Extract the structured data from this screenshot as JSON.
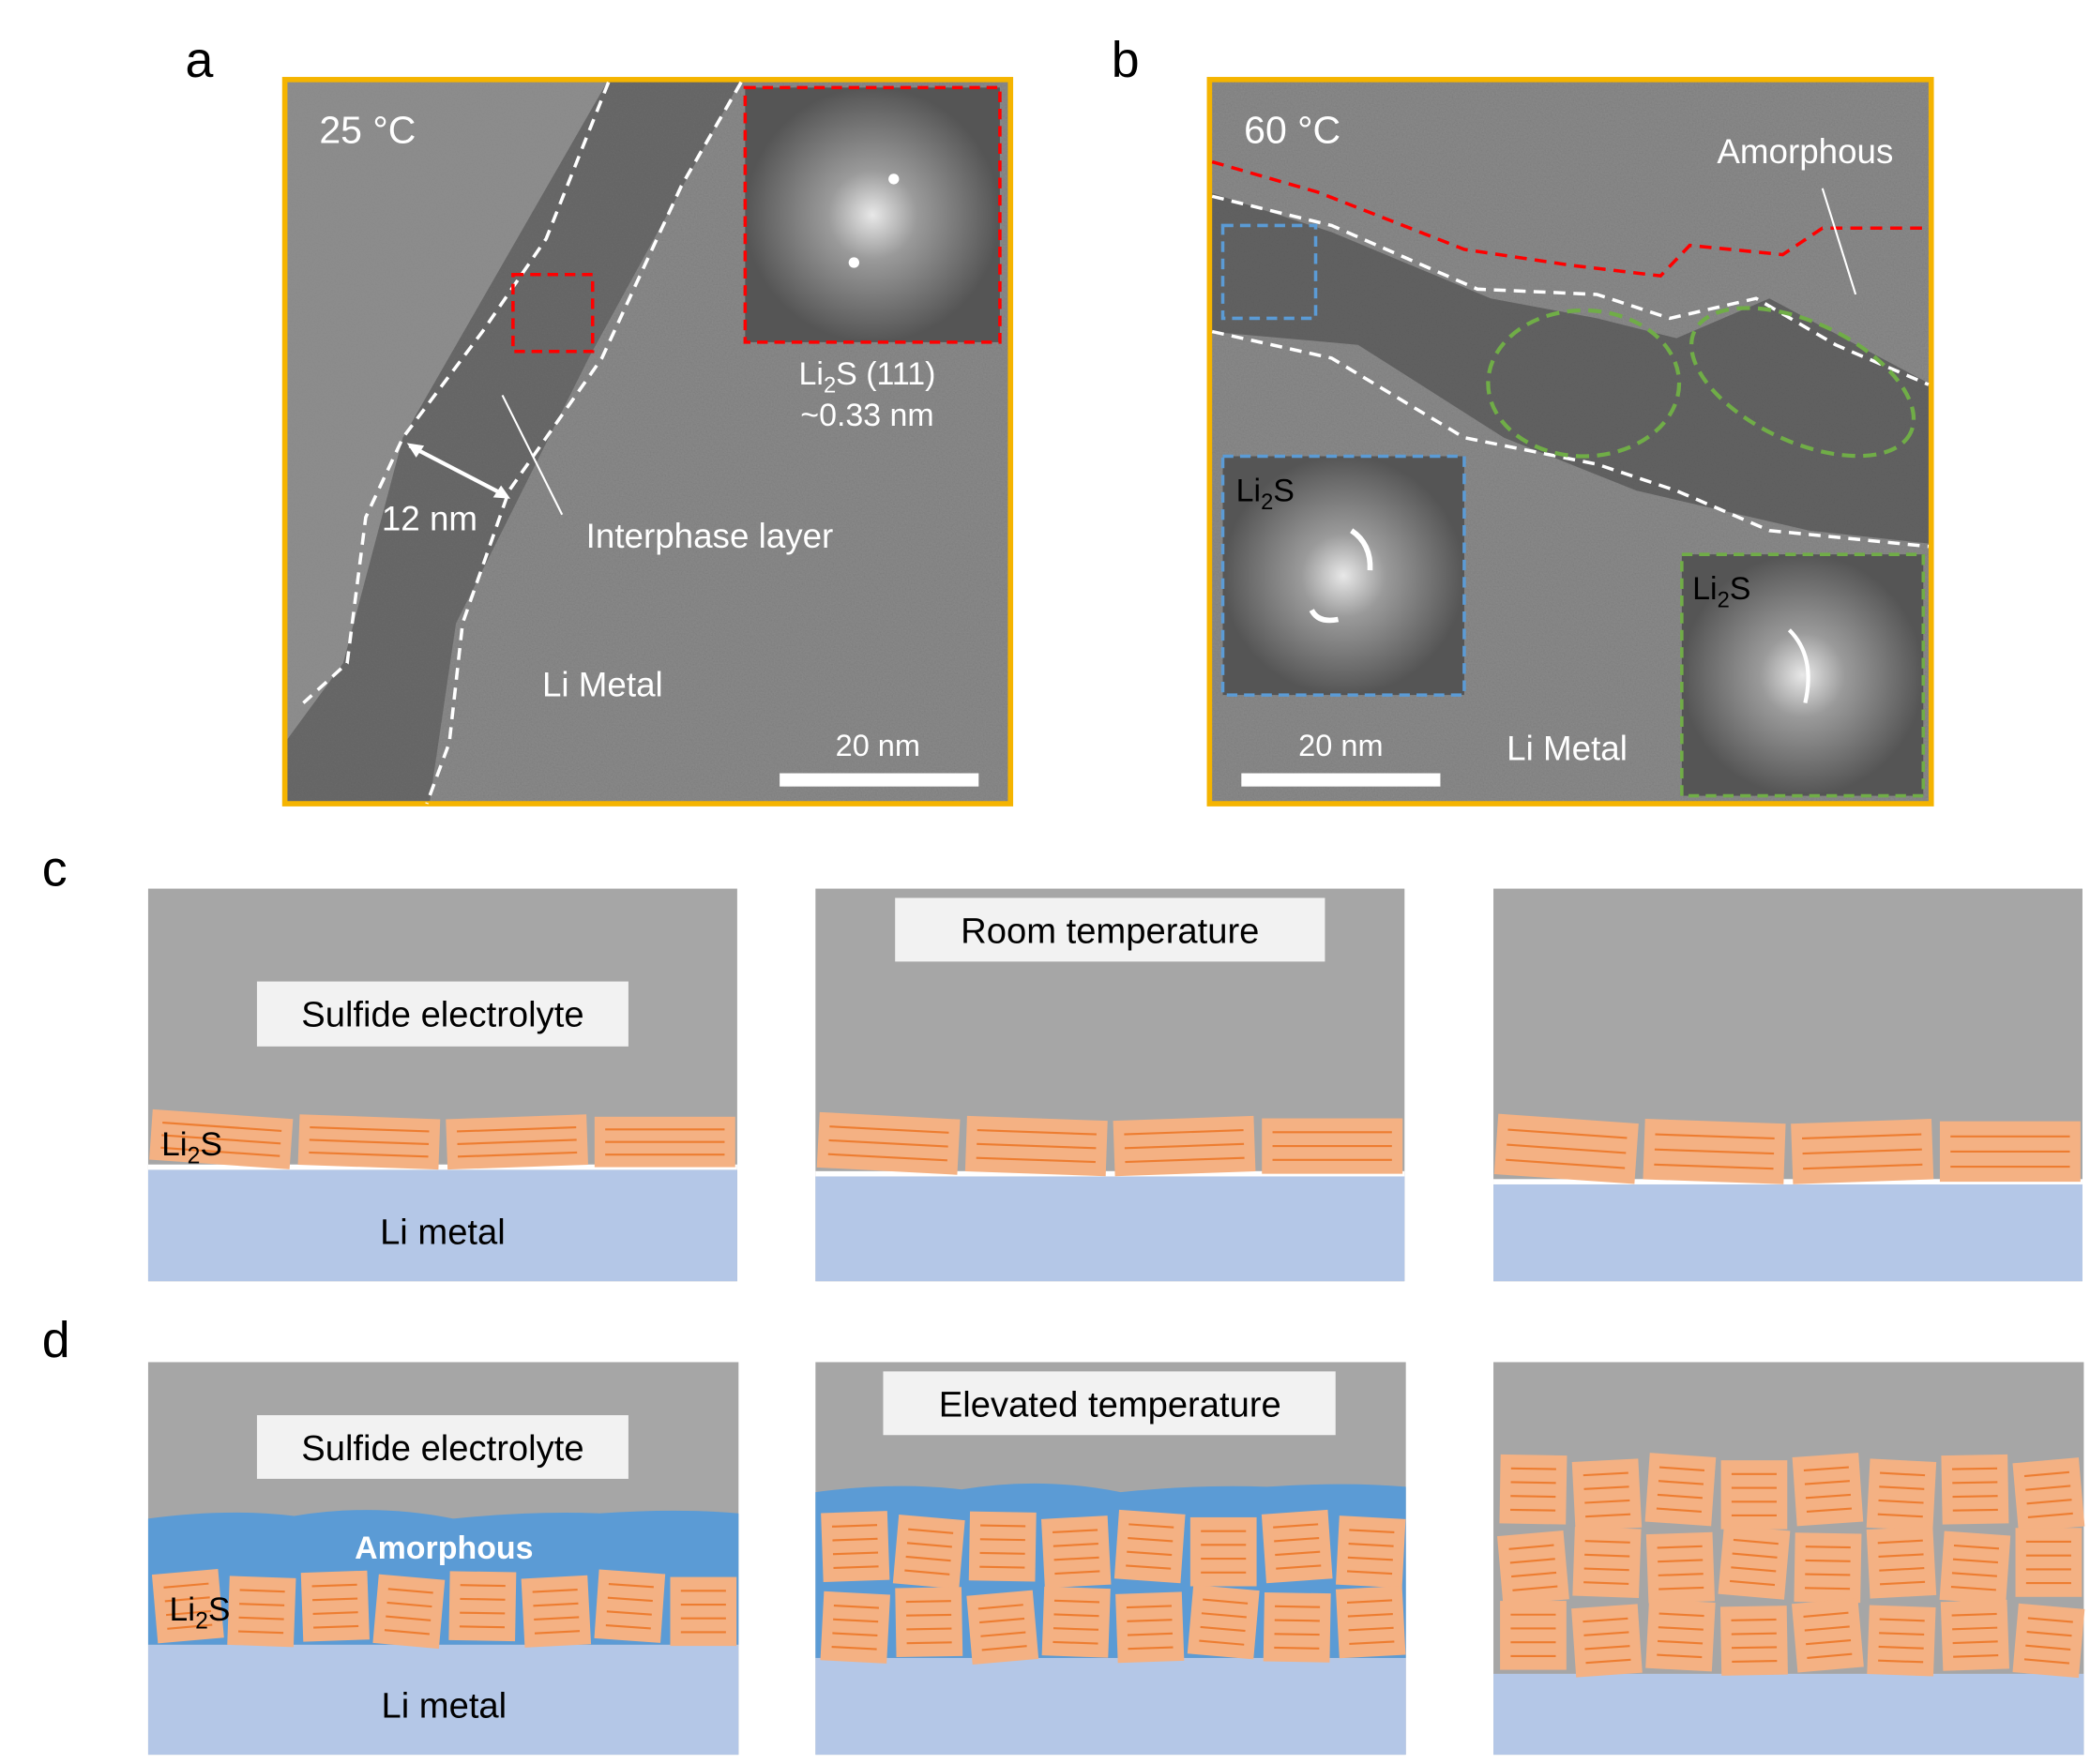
{
  "panel_labels": {
    "a": "a",
    "b": "b",
    "c": "c",
    "d": "d"
  },
  "panel_a": {
    "temperature": "25 °C",
    "fft_label_compound": "Li2S (111)",
    "fft_label_spacing": "~0.33 nm",
    "thickness": "12 nm",
    "interphase": "Interphase  layer",
    "metal": "Li Metal",
    "scale_bar": "20 nm"
  },
  "panel_b": {
    "temperature": "60 °C",
    "amorphous": "Amorphous",
    "fft_blue": "Li2S",
    "fft_green": "Li2S",
    "scale_bar": "20 nm",
    "metal": "Li Metal"
  },
  "panel_c": {
    "electrolyte": "Sulfide electrolyte",
    "condition": "Room temperature",
    "li2s": "Li2S",
    "metal": "Li metal"
  },
  "panel_d": {
    "electrolyte": "Sulfide electrolyte",
    "condition": "Elevated temperature",
    "amorphous": "Amorphous",
    "li2s": "Li2S",
    "metal": "Li metal"
  },
  "colors": {
    "frame": "#F5B400",
    "electrolyte": "#A6A6A6",
    "li_metal": "#B4C7E7",
    "li2s_fill": "#F4B183",
    "li2s_line": "#ED7D31",
    "amorphous": "#5B9BD5",
    "red_dash": "#FF0000",
    "blue_dash": "#5B9BD5",
    "green_dash": "#70AD47"
  }
}
